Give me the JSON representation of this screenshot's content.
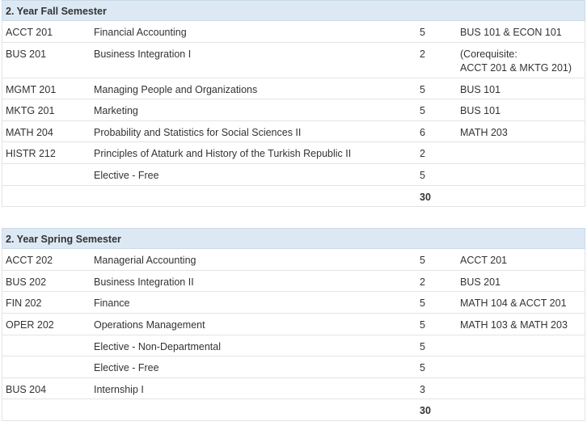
{
  "semesters": [
    {
      "title": "2. Year Fall Semester",
      "rows": [
        {
          "code": "ACCT 201",
          "name": "Financial Accounting",
          "credits": "5",
          "prereq": "BUS 101 & ECON 101"
        },
        {
          "code": "BUS 201",
          "name": "Business Integration I",
          "credits": "2",
          "prereq": "(Corequisite:\nACCT 201 & MKTG 201)"
        },
        {
          "code": "MGMT 201",
          "name": "Managing People and Organizations",
          "credits": "5",
          "prereq": "BUS 101"
        },
        {
          "code": "MKTG 201",
          "name": "Marketing",
          "credits": "5",
          "prereq": "BUS 101"
        },
        {
          "code": "MATH 204",
          "name": "Probability and Statistics for Social Sciences II",
          "credits": "6",
          "prereq": "MATH 203"
        },
        {
          "code": "HISTR 212",
          "name": "Principles of Ataturk and History of the Turkish Republic II",
          "credits": "2",
          "prereq": ""
        },
        {
          "code": "",
          "name": "Elective - Free",
          "credits": "5",
          "prereq": ""
        }
      ],
      "total": "30"
    },
    {
      "title": "2. Year Spring Semester",
      "rows": [
        {
          "code": "ACCT 202",
          "name": "Managerial Accounting",
          "credits": "5",
          "prereq": "ACCT 201"
        },
        {
          "code": "BUS 202",
          "name": "Business Integration II",
          "credits": "2",
          "prereq": "BUS 201"
        },
        {
          "code": "FIN 202",
          "name": "Finance",
          "credits": "5",
          "prereq": "MATH 104 & ACCT 201"
        },
        {
          "code": "OPER 202",
          "name": "Operations Management",
          "credits": "5",
          "prereq": "MATH 103 & MATH 203"
        },
        {
          "code": "",
          "name": "Elective - Non-Departmental",
          "credits": "5",
          "prereq": ""
        },
        {
          "code": "",
          "name": "Elective - Free",
          "credits": "5",
          "prereq": ""
        },
        {
          "code": "BUS 204",
          "name": "Internship I",
          "credits": "3",
          "prereq": ""
        }
      ],
      "total": "30"
    }
  ]
}
